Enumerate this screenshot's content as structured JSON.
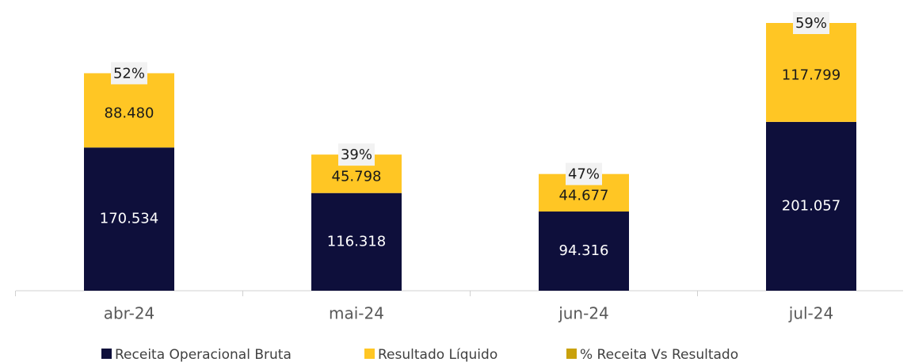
{
  "chart_data": {
    "type": "bar",
    "stacked": true,
    "categories": [
      "abr-24",
      "mai-24",
      "jun-24",
      "jul-24"
    ],
    "series": [
      {
        "name": "Receita Operacional Bruta",
        "color": "#0e0f3b",
        "values": [
          170534,
          116318,
          94316,
          201057
        ],
        "value_labels": [
          "170.534",
          "116.318",
          "94.316",
          "201.057"
        ]
      },
      {
        "name": "Resultado Líquido",
        "color": "#ffc624",
        "values": [
          88480,
          45798,
          44677,
          117799
        ],
        "value_labels": [
          "88.480",
          "45.798",
          "44.677",
          "117.799"
        ]
      },
      {
        "name": "% Receita Vs Resultado",
        "color": "#c9a10b",
        "values": [
          52,
          39,
          47,
          59
        ],
        "value_labels": [
          "52%",
          "39%",
          "47%",
          "59%"
        ]
      }
    ]
  }
}
